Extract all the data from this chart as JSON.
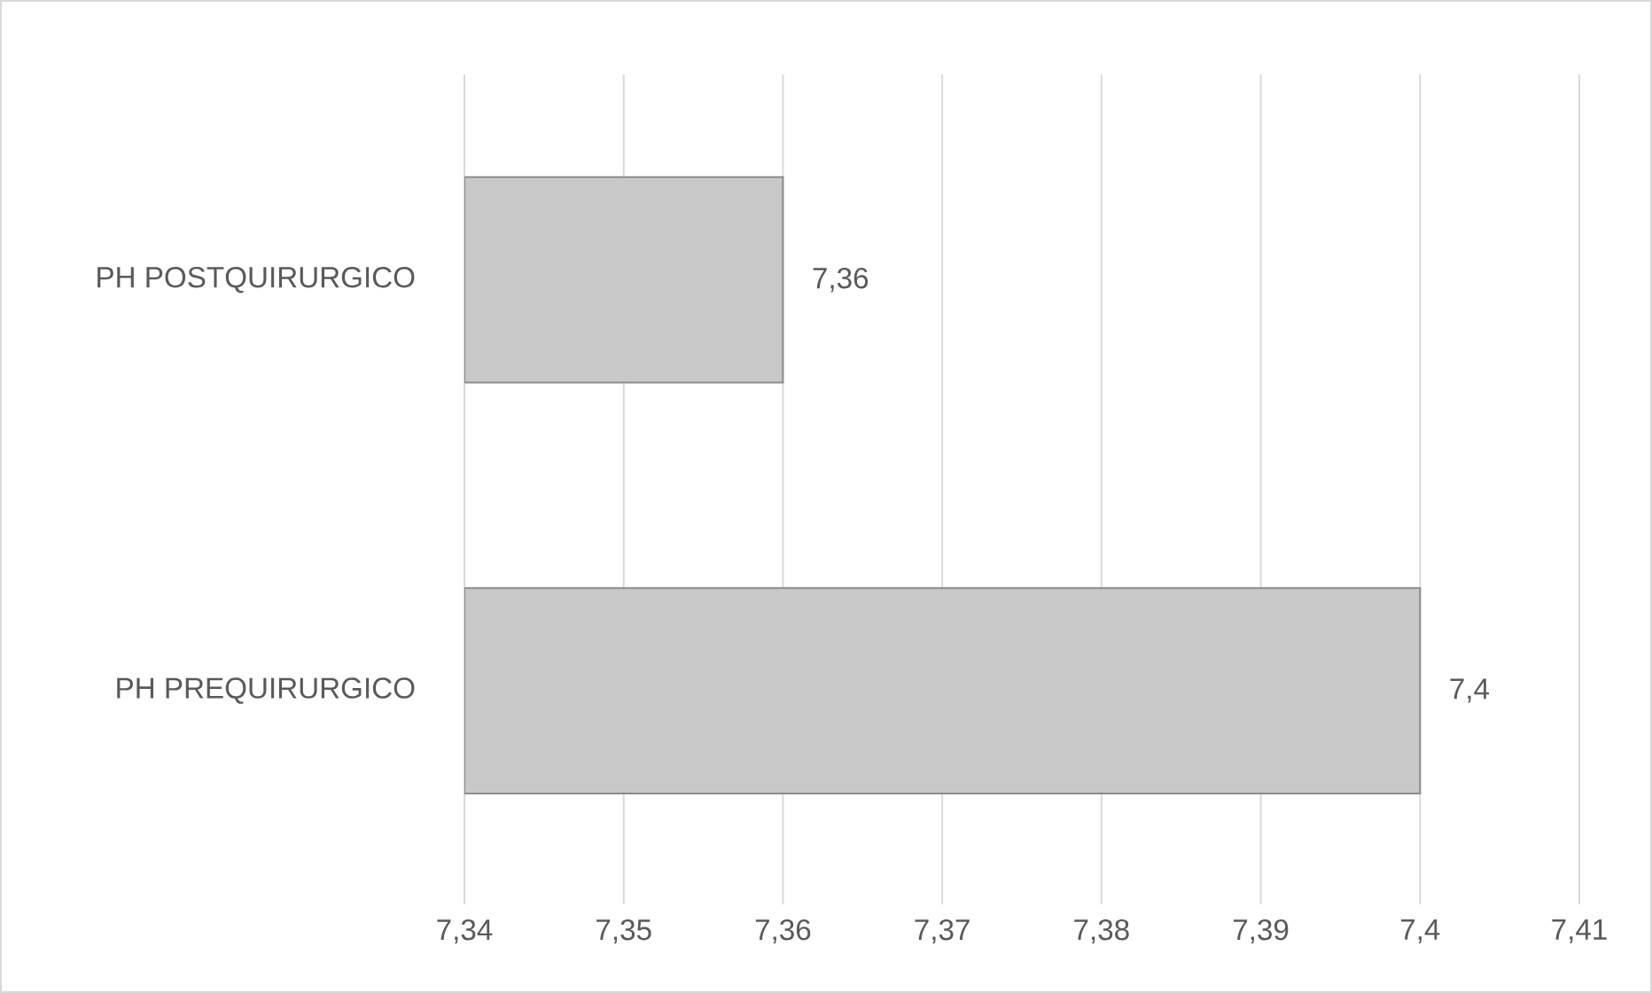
{
  "chart_data": {
    "type": "bar",
    "orientation": "horizontal",
    "categories": [
      "PH POSTQUIRURGICO",
      "PH PREQUIRURGICO"
    ],
    "values": [
      7.36,
      7.4
    ],
    "value_labels": [
      "7,36",
      "7,4"
    ],
    "color": "#c8c8c8",
    "xlim": [
      7.34,
      7.41
    ],
    "xticks": [
      {
        "value": 7.34,
        "label": "7,34"
      },
      {
        "value": 7.35,
        "label": "7,35"
      },
      {
        "value": 7.36,
        "label": "7,36"
      },
      {
        "value": 7.37,
        "label": "7,37"
      },
      {
        "value": 7.38,
        "label": "7,38"
      },
      {
        "value": 7.39,
        "label": "7,39"
      },
      {
        "value": 7.4,
        "label": "7,4"
      },
      {
        "value": 7.41,
        "label": "7,41"
      }
    ],
    "grid": "x"
  }
}
